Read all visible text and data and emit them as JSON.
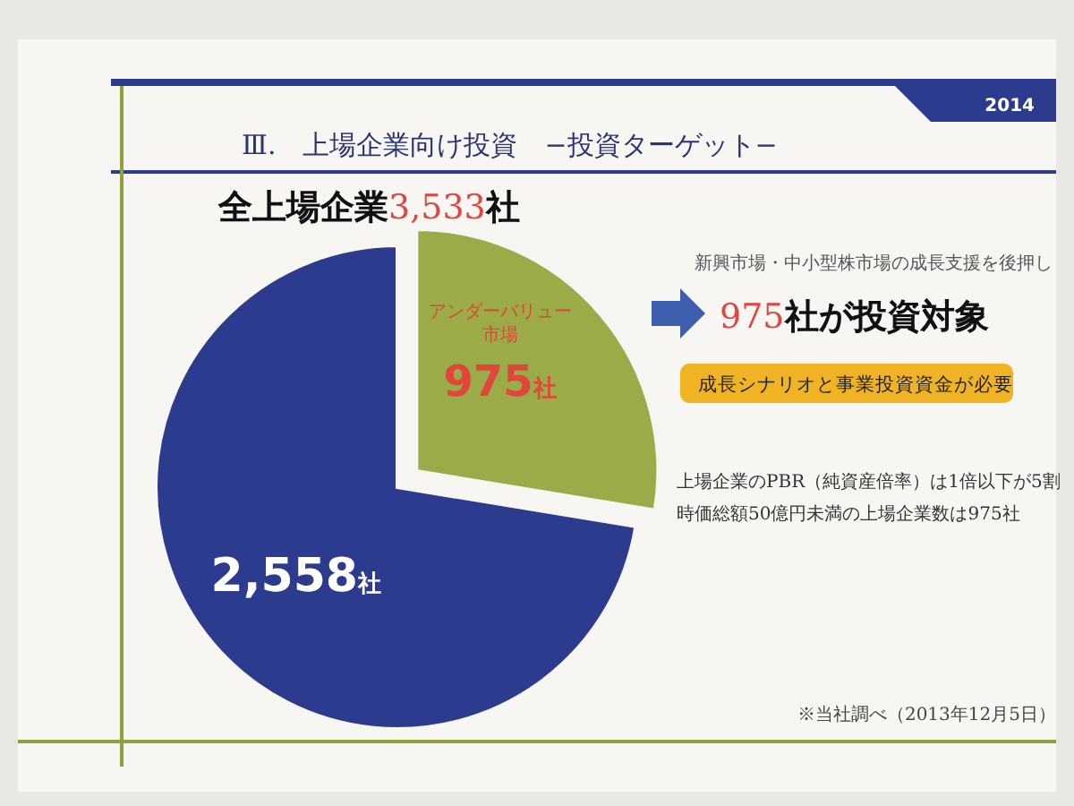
{
  "chart_data": {
    "type": "pie",
    "title": "Ⅲ.　上場企業向け投資　−投資ターゲット−",
    "subtitle": "全上場企業3,533社",
    "categories": [
      "アンダーバリュー市場",
      null
    ],
    "values": [
      975,
      2558
    ],
    "colors": [
      "#9aab47",
      "#2d3b8e"
    ],
    "value_labels": [
      "975社",
      "2,558社"
    ],
    "annotations": [
      "2014",
      "新興市場・中小型株市場の成長支援を後押し",
      "975社が投資対象",
      "成長シナリオと事業投資資金が必要",
      "上場企業のPBR（純資産倍率）は1倍以下が5割",
      "時価総額50億円未満の上場企業数は975社",
      "※当社調べ（2013年12月5日）"
    ]
  }
}
